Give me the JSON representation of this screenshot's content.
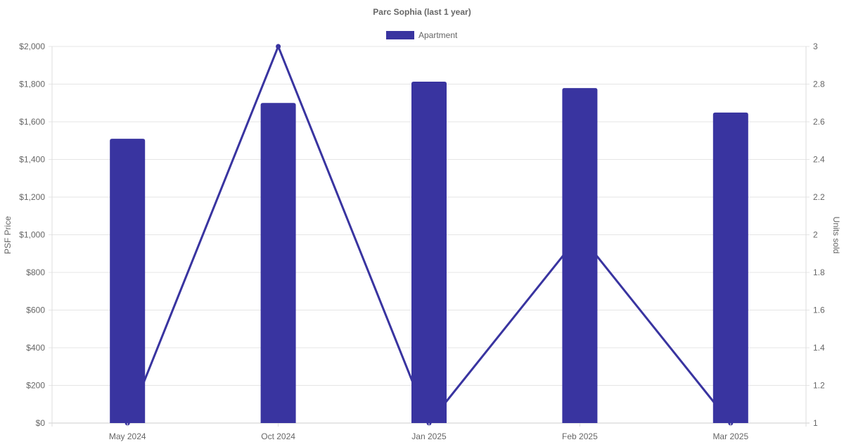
{
  "chart_data": {
    "type": "bar",
    "title": "Parc Sophia (last 1 year)",
    "categories": [
      "May 2024",
      "Oct 2024",
      "Jan 2025",
      "Feb 2025",
      "Mar 2025"
    ],
    "series": [
      {
        "name": "Apartment",
        "type": "bar",
        "axis": "left",
        "values": [
          1510,
          1700,
          1813,
          1779,
          1649
        ],
        "color": "#3934a0"
      },
      {
        "type": "line",
        "axis": "right",
        "values": [
          1,
          3,
          1,
          2,
          1
        ],
        "color": "#3934a0"
      }
    ],
    "ylabel": "PSF Price",
    "y2label": "Units sold",
    "ylim": [
      0,
      2000
    ],
    "y2lim": [
      1,
      3
    ],
    "yticks": [
      "$0",
      "$200",
      "$400",
      "$600",
      "$800",
      "$1,000",
      "$1,200",
      "$1,400",
      "$1,600",
      "$1,800",
      "$2,000"
    ],
    "y2ticks": [
      "1",
      "1.2",
      "1.4",
      "1.6",
      "1.8",
      "2",
      "2.2",
      "2.4",
      "2.6",
      "2.8",
      "3"
    ],
    "grid": true,
    "legend": "top"
  }
}
